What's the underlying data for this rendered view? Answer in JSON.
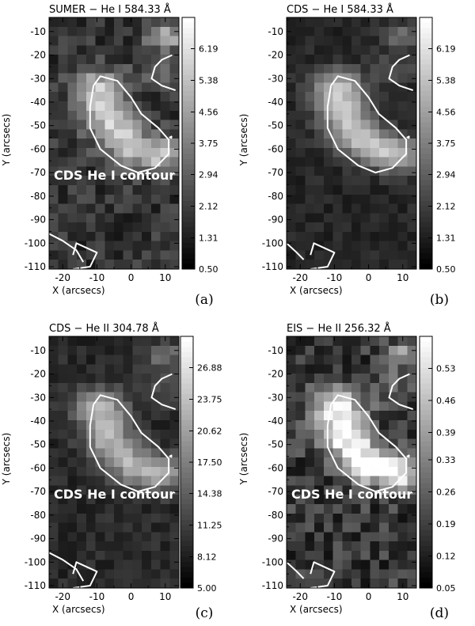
{
  "chart_data": [
    {
      "type": "heatmap",
      "title": "SUMER − He I 584.33 Å",
      "xlabel": "X (arcsecs)",
      "ylabel": "Y (arcsecs)",
      "xlim": [
        -24,
        14
      ],
      "ylim": [
        -111,
        -4
      ],
      "x_ticks": [
        -20,
        -10,
        0,
        10
      ],
      "y_ticks": [
        -10,
        -20,
        -30,
        -40,
        -50,
        -60,
        -70,
        -80,
        -90,
        -100,
        -110
      ],
      "colorbar_labels": [
        "6.19",
        "5.38",
        "4.56",
        "3.75",
        "2.94",
        "2.12",
        "1.31",
        "0.50"
      ],
      "colorbar_range": [
        0.5,
        7.0
      ],
      "annotation": "CDS He I contour",
      "panel_label": "(a)",
      "seed": 11,
      "bg": 0.2,
      "gain": 0.62,
      "noise": 0.12,
      "corner": 0.55
    },
    {
      "type": "heatmap",
      "title": "CDS − He I 584.33 Å",
      "xlabel": "X (arcsecs)",
      "ylabel": "Y (arcsecs)",
      "xlim": [
        -24,
        14
      ],
      "ylim": [
        -111,
        -4
      ],
      "x_ticks": [
        -20,
        -10,
        0,
        10
      ],
      "y_ticks": [
        -10,
        -20,
        -30,
        -40,
        -50,
        -60,
        -70,
        -80,
        -90,
        -100,
        -110
      ],
      "colorbar_labels": [
        "6.19",
        "5.38",
        "4.56",
        "3.75",
        "2.94",
        "2.12",
        "1.31",
        "0.50"
      ],
      "colorbar_range": [
        0.5,
        7.0
      ],
      "annotation": "",
      "panel_label": "(b)",
      "seed": 23,
      "bg": 0.15,
      "gain": 0.65,
      "noise": 0.06,
      "corner": 0.3
    },
    {
      "type": "heatmap",
      "title": "CDS − He II 304.78 Å",
      "xlabel": "X (arcsecs)",
      "ylabel": "Y (arcsecs)",
      "xlim": [
        -24,
        14
      ],
      "ylim": [
        -111,
        -4
      ],
      "x_ticks": [
        -20,
        -10,
        0,
        10
      ],
      "y_ticks": [
        -10,
        -20,
        -30,
        -40,
        -50,
        -60,
        -70,
        -80,
        -90,
        -100,
        -110
      ],
      "colorbar_labels": [
        "26.88",
        "23.75",
        "20.62",
        "17.50",
        "14.38",
        "11.25",
        "8.12",
        "5.00"
      ],
      "colorbar_range": [
        5.0,
        30.0
      ],
      "annotation": "CDS He I contour",
      "panel_label": "(c)",
      "seed": 37,
      "bg": 0.16,
      "gain": 0.55,
      "noise": 0.07,
      "corner": 0.3
    },
    {
      "type": "heatmap",
      "title": "EIS − He II 256.32 Å",
      "xlabel": "X (arcsecs)",
      "ylabel": "Y (arcsecs)",
      "xlim": [
        -24,
        14
      ],
      "ylim": [
        -111,
        -4
      ],
      "x_ticks": [
        -20,
        -10,
        0,
        10
      ],
      "y_ticks": [
        -10,
        -20,
        -30,
        -40,
        -50,
        -60,
        -70,
        -80,
        -90,
        -100,
        -110
      ],
      "colorbar_labels": [
        "0.53",
        "0.46",
        "0.39",
        "0.33",
        "0.26",
        "0.19",
        "0.12",
        "0.05"
      ],
      "colorbar_range": [
        0.05,
        0.6
      ],
      "annotation": "CDS He I contour",
      "panel_label": "(d)",
      "seed": 53,
      "bg": 0.22,
      "gain": 0.78,
      "noise": 0.16,
      "corner": 0.45
    }
  ]
}
